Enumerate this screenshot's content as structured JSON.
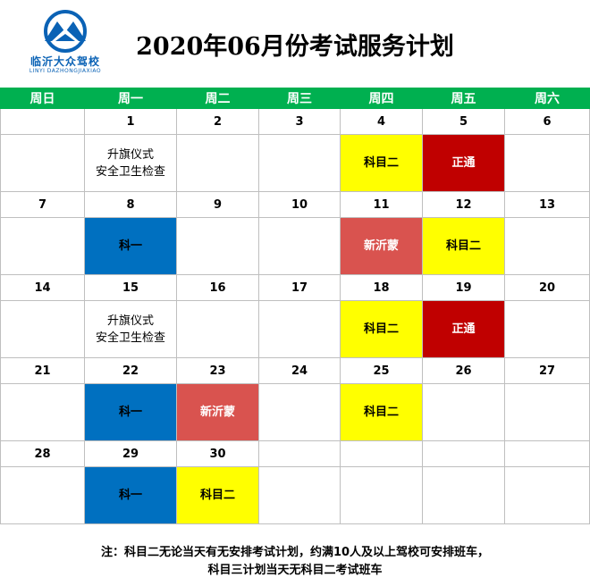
{
  "header": {
    "logo_cn": "临沂大众驾校",
    "logo_en": "LINYI DAZHONGJIAXIAO",
    "title": "2020年06月份考试服务计划"
  },
  "colors": {
    "header_green": "#00b050",
    "yellow": "#ffff00",
    "dark_red": "#c00000",
    "blue": "#0070c0",
    "pink_red": "#d9534f"
  },
  "weekdays": [
    "周日",
    "周一",
    "周二",
    "周三",
    "周四",
    "周五",
    "周六"
  ],
  "weeks": [
    {
      "days": [
        "",
        "1",
        "2",
        "3",
        "4",
        "5",
        "6"
      ],
      "events": [
        {
          "text": "",
          "color": "none"
        },
        {
          "text": "升旗仪式\n安全卫生检查",
          "color": "none"
        },
        {
          "text": "",
          "color": "none"
        },
        {
          "text": "",
          "color": "none"
        },
        {
          "text": "科目二",
          "color": "yellow"
        },
        {
          "text": "正通",
          "color": "red"
        },
        {
          "text": "",
          "color": "none"
        }
      ]
    },
    {
      "days": [
        "7",
        "8",
        "9",
        "10",
        "11",
        "12",
        "13"
      ],
      "events": [
        {
          "text": "",
          "color": "none"
        },
        {
          "text": "科一",
          "color": "blue"
        },
        {
          "text": "",
          "color": "none"
        },
        {
          "text": "",
          "color": "none"
        },
        {
          "text": "新沂蒙",
          "color": "pink"
        },
        {
          "text": "科目二",
          "color": "yellow"
        },
        {
          "text": "",
          "color": "none"
        }
      ]
    },
    {
      "days": [
        "14",
        "15",
        "16",
        "17",
        "18",
        "19",
        "20"
      ],
      "events": [
        {
          "text": "",
          "color": "none"
        },
        {
          "text": "升旗仪式\n安全卫生检查",
          "color": "none"
        },
        {
          "text": "",
          "color": "none"
        },
        {
          "text": "",
          "color": "none"
        },
        {
          "text": "科目二",
          "color": "yellow"
        },
        {
          "text": "正通",
          "color": "red"
        },
        {
          "text": "",
          "color": "none"
        }
      ]
    },
    {
      "days": [
        "21",
        "22",
        "23",
        "24",
        "25",
        "26",
        "27"
      ],
      "events": [
        {
          "text": "",
          "color": "none"
        },
        {
          "text": "科一",
          "color": "blue"
        },
        {
          "text": "新沂蒙",
          "color": "pink"
        },
        {
          "text": "",
          "color": "none"
        },
        {
          "text": "科目二",
          "color": "yellow"
        },
        {
          "text": "",
          "color": "none"
        },
        {
          "text": "",
          "color": "none"
        }
      ]
    },
    {
      "days": [
        "28",
        "29",
        "30",
        "",
        "",
        "",
        ""
      ],
      "events": [
        {
          "text": "",
          "color": "none"
        },
        {
          "text": "科一",
          "color": "blue"
        },
        {
          "text": "科目二",
          "color": "yellow"
        },
        {
          "text": "",
          "color": "none"
        },
        {
          "text": "",
          "color": "none"
        },
        {
          "text": "",
          "color": "none"
        },
        {
          "text": "",
          "color": "none"
        }
      ]
    }
  ],
  "footer": {
    "line1": "注：科目二无论当天有无安排考试计划，约满10人及以上驾校可安排班车，",
    "line2": "科目三计划当天无科目二考试班车"
  }
}
